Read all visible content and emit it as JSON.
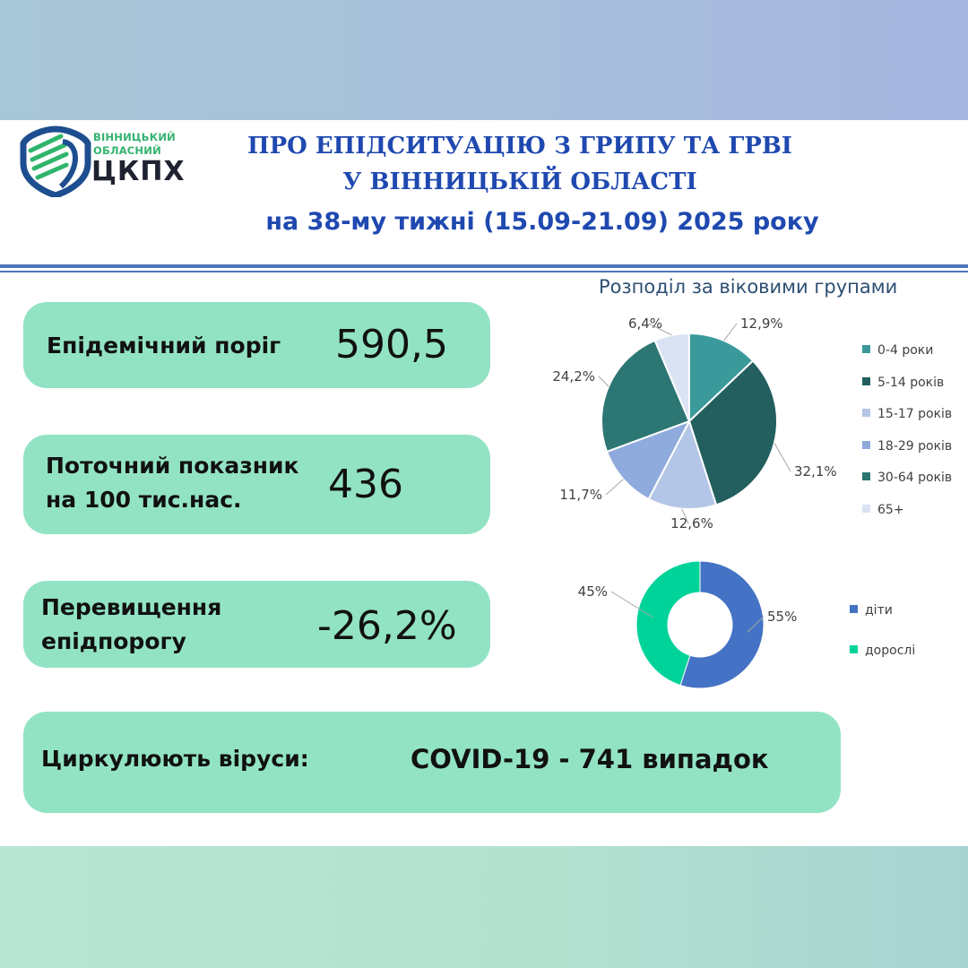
{
  "header": {
    "logo_small_line1": "ВІННИЦЬКИЙ",
    "logo_small_line2": "ОБЛАСНИЙ",
    "logo_big": "ЦКПХ",
    "title_line1": "ПРО ЕПІДСИТУАЦІЮ З ГРИПУ ТА ГРВІ",
    "title_line2": "У ВІННИЦЬКІЙ ОБЛАСТІ",
    "subtitle": "на 38-му тижні (15.09-21.09) 2025 року"
  },
  "colors": {
    "card": "#92e3c4",
    "title": "#1f49b0",
    "logo_green": "#34b36f",
    "logo_navy": "#1d4e8f"
  },
  "cards": {
    "threshold": {
      "label": "Епідемічний поріг",
      "value": "590,5"
    },
    "current": {
      "label_line1": "Поточний показник",
      "label_line2": "на 100 тис.нас.",
      "value": "436"
    },
    "excess": {
      "label_line1": "Перевищення",
      "label_line2": "епідпорогу",
      "value": "-26,2%"
    },
    "viruses": {
      "label": "Циркулюють віруси:",
      "value": "COVID-19 - 741 випадок"
    }
  },
  "chart_data": [
    {
      "type": "pie",
      "title": "Розподіл за віковими групами",
      "categories": [
        "0-4 роки",
        "5-14 років",
        "15-17 років",
        "18-29 років",
        "30-64 років",
        "65+"
      ],
      "values": [
        12.9,
        32.1,
        12.6,
        11.7,
        24.2,
        6.4
      ],
      "data_labels": [
        "12,9%",
        "32,1%",
        "12,6%",
        "11,7%",
        "24,2%",
        "6,4%"
      ],
      "colors": [
        "#3a9a9b",
        "#235f5e",
        "#b4c6e7",
        "#8faadc",
        "#2c7674",
        "#dae3f3"
      ],
      "legend_position": "right"
    },
    {
      "type": "pie",
      "title": "",
      "categories": [
        "діти",
        "дорослі"
      ],
      "values": [
        55,
        45
      ],
      "data_labels": [
        "55%",
        "45%"
      ],
      "colors": [
        "#4472c4",
        "#00d39a"
      ],
      "legend_position": "right"
    }
  ]
}
